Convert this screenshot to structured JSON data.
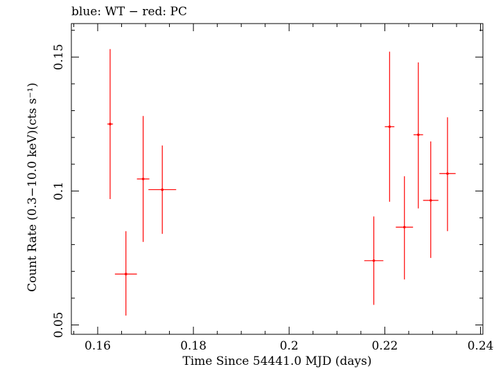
{
  "chart_data": {
    "type": "scatter",
    "title": "blue: WT − red: PC",
    "xlabel": "Time Since 54441.0 MJD (days)",
    "ylabel": "Count Rate (0.3−10.0 keV)(cts s⁻¹)",
    "xlim": [
      0.1545,
      0.2405
    ],
    "ylim": [
      0.0465,
      0.1625
    ],
    "xticks": [
      0.16,
      0.18,
      0.2,
      0.22,
      0.24
    ],
    "xtick_labels": [
      "0.16",
      "0.18",
      "0.2",
      "0.22",
      "0.24"
    ],
    "yticks": [
      0.05,
      0.1,
      0.15
    ],
    "ytick_labels": [
      "0.05",
      "0.1",
      "0.15"
    ],
    "x_minor_step": 0.005,
    "y_minor_step": 0.01,
    "grid": false,
    "series": [
      {
        "name": "PC",
        "color": "#ff0000",
        "points": [
          {
            "x": 0.1626,
            "y": 0.125,
            "xerr": 0.0006,
            "ylo": 0.097,
            "yhi": 0.153
          },
          {
            "x": 0.1659,
            "y": 0.069,
            "xerr": 0.0023,
            "ylo": 0.0535,
            "yhi": 0.085
          },
          {
            "x": 0.1695,
            "y": 0.1045,
            "xerr": 0.0013,
            "ylo": 0.081,
            "yhi": 0.128
          },
          {
            "x": 0.1735,
            "y": 0.1005,
            "xerr": 0.0029,
            "ylo": 0.084,
            "yhi": 0.117
          },
          {
            "x": 0.2177,
            "y": 0.074,
            "xerr": 0.002,
            "ylo": 0.0575,
            "yhi": 0.0905
          },
          {
            "x": 0.221,
            "y": 0.124,
            "xerr": 0.001,
            "ylo": 0.096,
            "yhi": 0.152
          },
          {
            "x": 0.2241,
            "y": 0.0865,
            "xerr": 0.0018,
            "ylo": 0.067,
            "yhi": 0.1055
          },
          {
            "x": 0.227,
            "y": 0.121,
            "xerr": 0.001,
            "ylo": 0.0935,
            "yhi": 0.148
          },
          {
            "x": 0.2296,
            "y": 0.0965,
            "xerr": 0.0016,
            "ylo": 0.075,
            "yhi": 0.1185
          },
          {
            "x": 0.2331,
            "y": 0.1065,
            "xerr": 0.0017,
            "ylo": 0.085,
            "yhi": 0.1275
          }
        ]
      }
    ]
  }
}
